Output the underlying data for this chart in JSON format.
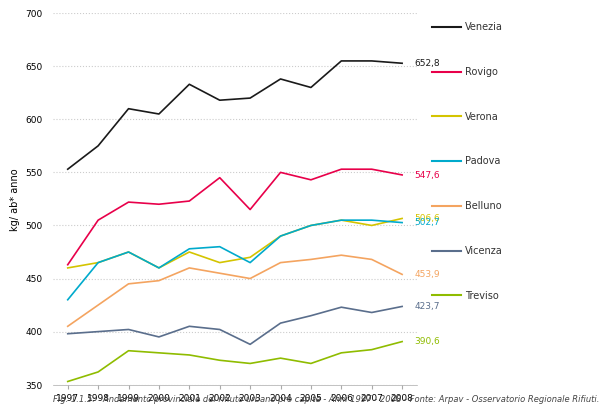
{
  "years": [
    1997,
    1998,
    1999,
    2000,
    2001,
    2002,
    2003,
    2004,
    2005,
    2006,
    2007,
    2008
  ],
  "series": {
    "Venezia": [
      553,
      575,
      610,
      605,
      633,
      618,
      620,
      638,
      630,
      655,
      655,
      652.8
    ],
    "Rovigo": [
      463,
      505,
      522,
      520,
      523,
      545,
      515,
      550,
      543,
      553,
      553,
      547.6
    ],
    "Verona": [
      460,
      465,
      475,
      460,
      475,
      465,
      470,
      490,
      500,
      505,
      500,
      506.6
    ],
    "Padova": [
      430,
      465,
      475,
      460,
      478,
      480,
      465,
      490,
      500,
      505,
      505,
      502.7
    ],
    "Belluno": [
      405,
      425,
      445,
      448,
      460,
      455,
      450,
      465,
      468,
      472,
      468,
      453.9
    ],
    "Vicenza": [
      398,
      400,
      402,
      395,
      405,
      402,
      388,
      408,
      415,
      423,
      418,
      423.7
    ],
    "Treviso": [
      353,
      362,
      382,
      380,
      378,
      373,
      370,
      375,
      370,
      380,
      383,
      390.6
    ]
  },
  "end_values": {
    "Venezia": "652,8",
    "Rovigo": "547,6",
    "Verona": "506,6",
    "Padova": "502,7",
    "Belluno": "453,9",
    "Vicenza": "423,7",
    "Treviso": "390,6"
  },
  "colors": {
    "Venezia": "#1a1a1a",
    "Rovigo": "#e8004a",
    "Verona": "#d4c400",
    "Padova": "#00aacc",
    "Belluno": "#f4a460",
    "Vicenza": "#5a6e8c",
    "Treviso": "#8fbc00"
  },
  "ylabel": "kg/ ab* anno",
  "ylim": [
    350,
    700
  ],
  "yticks": [
    350,
    400,
    450,
    500,
    550,
    600,
    650,
    700
  ],
  "caption": "Fig. 1.1.5:   Andamento provinciale del rifiuto urbano pro capite - Anni 1997 - 2008 - Fonte: Arpav - Osservatorio Regionale Rifiuti.",
  "background_color": "#ffffff",
  "grid_color": "#cccccc"
}
